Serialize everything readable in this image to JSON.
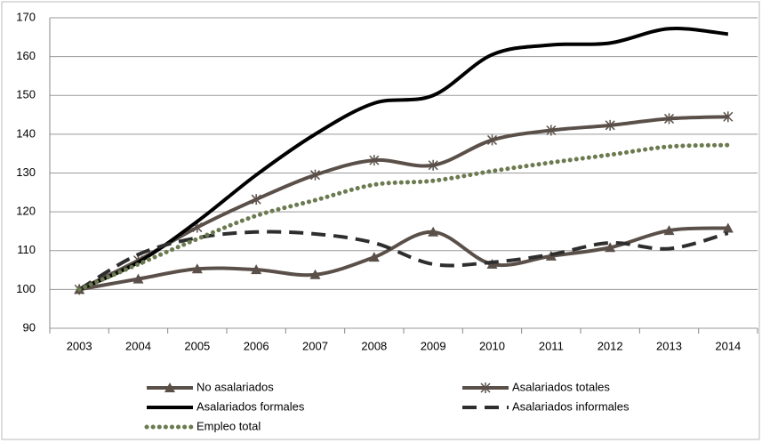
{
  "chart_data": {
    "type": "line",
    "categories": [
      "2003",
      "2004",
      "2005",
      "2006",
      "2007",
      "2008",
      "2009",
      "2010",
      "2011",
      "2012",
      "2013",
      "2014"
    ],
    "ylim": [
      90,
      170
    ],
    "yticks": [
      90,
      100,
      110,
      120,
      130,
      140,
      150,
      160,
      170
    ],
    "grid": true,
    "series": [
      {
        "name": "No asalariados",
        "color": "#5a5049",
        "marker": "triangle",
        "style": "solid",
        "values": [
          100,
          102.7,
          105.3,
          105.1,
          103.8,
          108.3,
          114.8,
          106.5,
          108.6,
          110.8,
          115.2,
          115.8
        ]
      },
      {
        "name": "Asalariados totales",
        "color": "#5a5049",
        "marker": "star",
        "style": "solid",
        "values": [
          100,
          107.5,
          116,
          123.2,
          129.5,
          133.3,
          132,
          138.5,
          141,
          142.3,
          144,
          144.5
        ]
      },
      {
        "name": "Asalariados formales",
        "color": "#000000",
        "marker": "none",
        "style": "solid",
        "values": [
          100,
          107,
          117.5,
          129.5,
          140,
          148,
          150,
          160.5,
          163,
          163.5,
          167.2,
          165.8
        ]
      },
      {
        "name": "Asalariados informales",
        "color": "#2e2e2e",
        "marker": "none",
        "style": "dashed",
        "values": [
          100,
          109,
          113.3,
          114.8,
          114.3,
          112,
          106.5,
          107,
          109,
          112,
          110.5,
          114.5
        ]
      },
      {
        "name": "Empleo total",
        "color": "#6b7a4f",
        "marker": "none",
        "style": "dotted",
        "values": [
          100,
          106.5,
          113,
          119,
          123,
          127,
          128,
          130.5,
          132.7,
          134.7,
          136.8,
          137.2
        ]
      }
    ]
  }
}
